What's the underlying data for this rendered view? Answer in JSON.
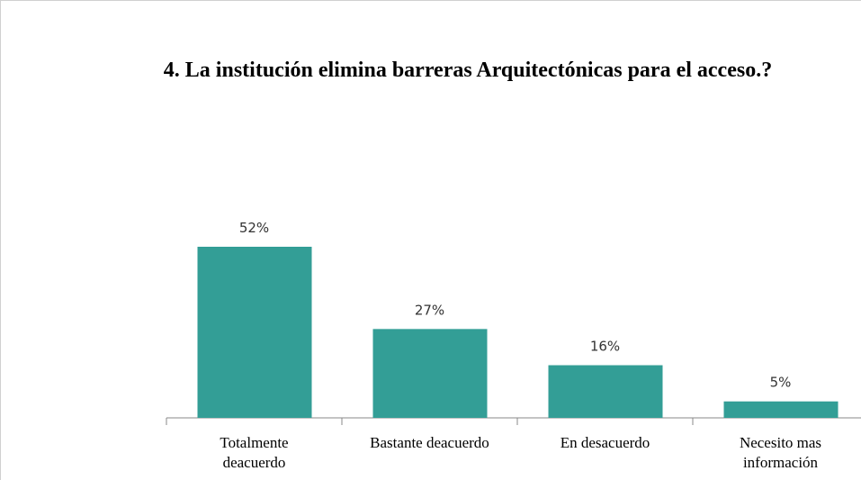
{
  "chart_data": {
    "type": "bar",
    "title": "4. La institución  elimina barreras Arquitectónicas para el acceso.?",
    "categories": [
      "Totalmente deacuerdo",
      "Bastante deacuerdo",
      "En desacuerdo",
      "Necesito mas información"
    ],
    "values": [
      52,
      27,
      16,
      5
    ],
    "value_labels": [
      "52%",
      "27%",
      "16%",
      "5%"
    ],
    "color": "#339e96"
  }
}
